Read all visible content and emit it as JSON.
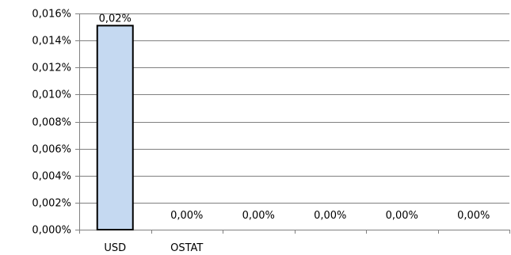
{
  "chart_data": {
    "type": "bar",
    "title": "",
    "xlabel": "",
    "ylabel": "",
    "categories": [
      "USD",
      "OSTAT",
      "",
      "",
      "",
      ""
    ],
    "values": [
      0.0151,
      0,
      0,
      0,
      0,
      0
    ],
    "data_labels": [
      "0,02%",
      "0,00%",
      "0,00%",
      "0,00%",
      "0,00%",
      "0,00%"
    ],
    "ylim": [
      0,
      0.016
    ],
    "yticks": [
      0,
      0.002,
      0.004,
      0.006,
      0.008,
      0.01,
      0.012,
      0.014,
      0.016
    ],
    "ytick_labels": [
      "0,000%",
      "0,002%",
      "0,004%",
      "0,006%",
      "0,008%",
      "0,010%",
      "0,012%",
      "0,014%",
      "0,016%"
    ],
    "grid": true,
    "legend": "none",
    "colors": {
      "bar_fill": "#c5d9f1",
      "bar_stroke": "#000000",
      "grid": "#808080",
      "axis": "#808080"
    }
  }
}
